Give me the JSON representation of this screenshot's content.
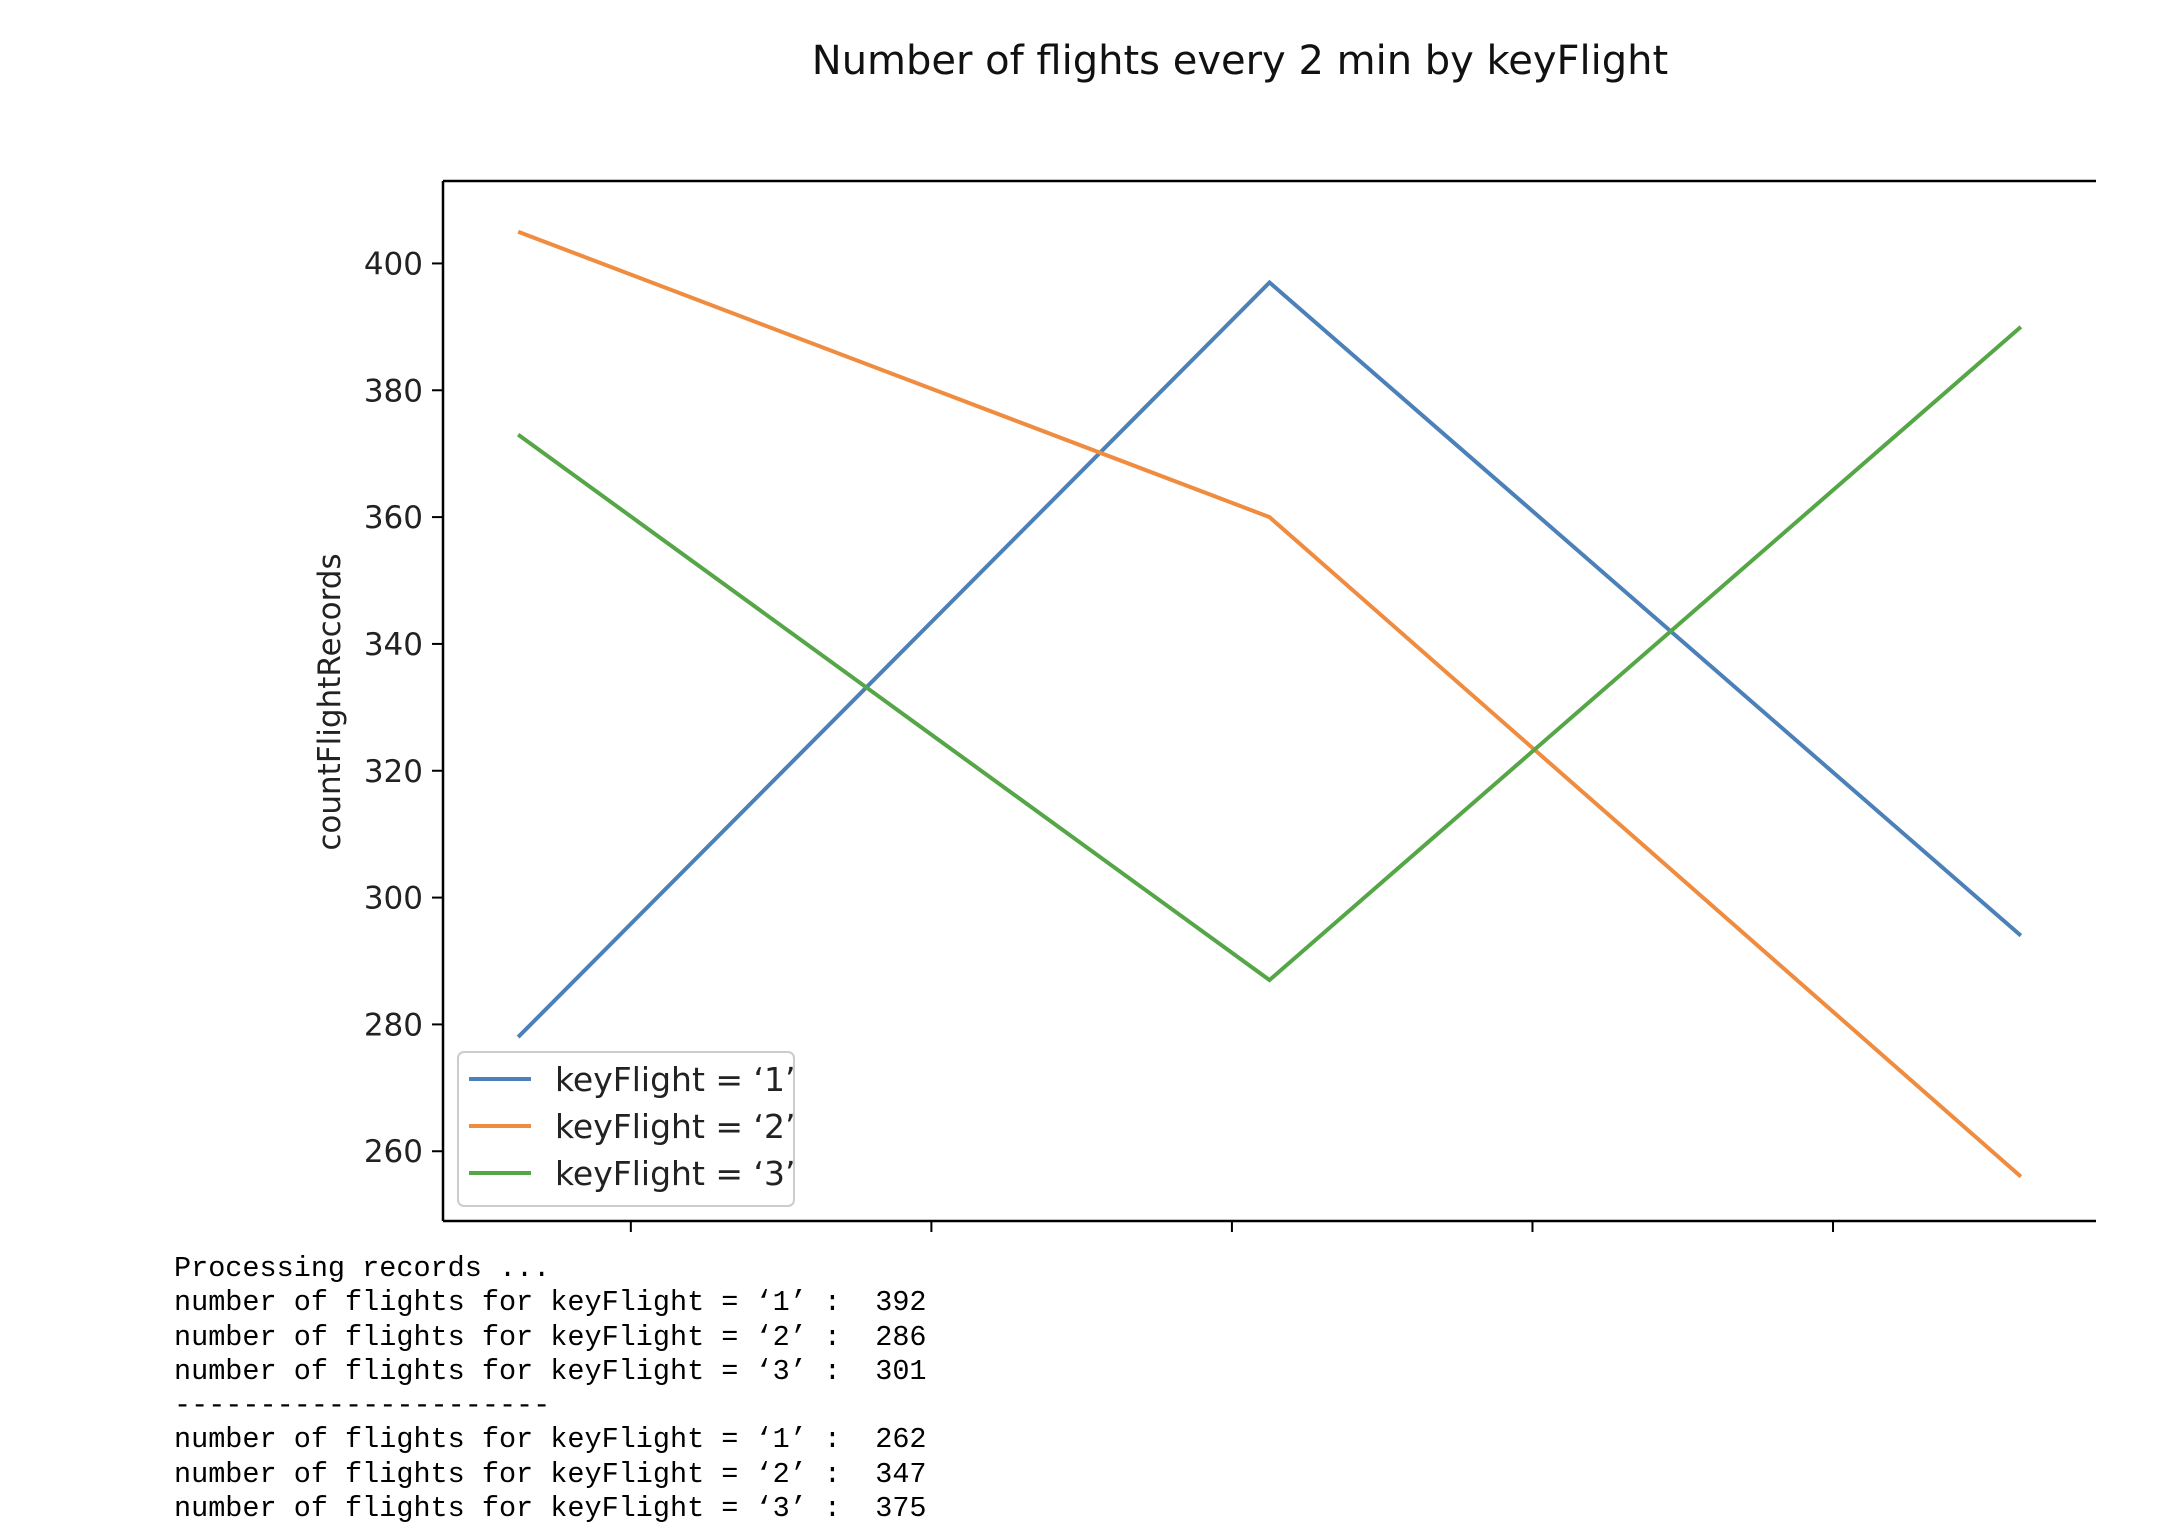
{
  "colors": {
    "series_1": "#4c80b8",
    "series_2": "#ef8c3f",
    "series_3": "#55a646",
    "axis": "#000000",
    "text": "#222222"
  },
  "chart_data": {
    "type": "line",
    "title": "Number of flights every 2 min by keyFlight",
    "xlabel": "",
    "ylabel": "countFlightRecords",
    "x": [
      0,
      1,
      2
    ],
    "xlim": [
      -0.1,
      2.1
    ],
    "x_ticks": [
      0.15,
      0.55,
      0.95,
      1.35,
      1.75
    ],
    "ylim": [
      249,
      413
    ],
    "y_ticks": [
      260,
      280,
      300,
      320,
      340,
      360,
      380,
      400
    ],
    "grid": false,
    "legend": "lower-left",
    "series": [
      {
        "name": "keyFlight = ‘1’",
        "values": [
          278,
          397,
          294
        ],
        "color": "#4c80b8"
      },
      {
        "name": "keyFlight = ‘2’",
        "values": [
          405,
          360,
          256
        ],
        "color": "#ef8c3f"
      },
      {
        "name": "keyFlight = ‘3’",
        "values": [
          373,
          287,
          390
        ],
        "color": "#55a646"
      }
    ]
  },
  "console": {
    "lines": [
      "Processing records ...",
      "number of flights for keyFlight = ‘1’ :  392",
      "number of flights for keyFlight = ‘2’ :  286",
      "number of flights for keyFlight = ‘3’ :  301",
      "----------------------",
      "number of flights for keyFlight = ‘1’ :  262",
      "number of flights for keyFlight = ‘2’ :  347",
      "number of flights for keyFlight = ‘3’ :  375"
    ]
  }
}
